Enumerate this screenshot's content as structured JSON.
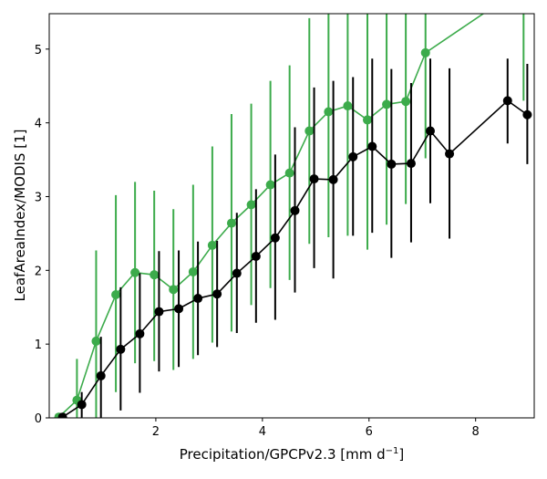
{
  "chart_data": {
    "type": "line",
    "title": "",
    "xlabel": "Precipitation/GPCPv2.3 [mm d",
    "xlabel_sup": "−1",
    "xlabel_end": "]",
    "ylabel": "LeafAreaIndex/MODIS [1]",
    "xlim": [
      0.0,
      9.1
    ],
    "ylim": [
      0.0,
      5.48
    ],
    "x_ticks": [
      2,
      4,
      6,
      8
    ],
    "y_ticks": [
      0,
      1,
      2,
      3,
      4,
      5
    ],
    "grid": false,
    "legend": "none",
    "series": [
      {
        "color": "#3cab4b",
        "points": [
          {
            "x": 0.18,
            "y": 0.01,
            "lo": 0.0,
            "hi": 0.02
          },
          {
            "x": 0.52,
            "y": 0.24,
            "lo": 0.0,
            "hi": 0.8
          },
          {
            "x": 0.88,
            "y": 1.04,
            "lo": 0.0,
            "hi": 2.27
          },
          {
            "x": 1.25,
            "y": 1.67,
            "lo": 0.35,
            "hi": 3.02
          },
          {
            "x": 1.61,
            "y": 1.97,
            "lo": 0.74,
            "hi": 3.2
          },
          {
            "x": 1.97,
            "y": 1.94,
            "lo": 0.77,
            "hi": 3.08
          },
          {
            "x": 2.33,
            "y": 1.74,
            "lo": 0.65,
            "hi": 2.83
          },
          {
            "x": 2.7,
            "y": 1.98,
            "lo": 0.8,
            "hi": 3.16
          },
          {
            "x": 3.06,
            "y": 2.34,
            "lo": 1.02,
            "hi": 3.68
          },
          {
            "x": 3.42,
            "y": 2.64,
            "lo": 1.17,
            "hi": 4.12
          },
          {
            "x": 3.79,
            "y": 2.89,
            "lo": 1.53,
            "hi": 4.26
          },
          {
            "x": 4.15,
            "y": 3.16,
            "lo": 1.76,
            "hi": 4.57
          },
          {
            "x": 4.51,
            "y": 3.32,
            "lo": 1.87,
            "hi": 4.78
          },
          {
            "x": 4.88,
            "y": 3.89,
            "lo": 2.36,
            "hi": 5.42
          },
          {
            "x": 5.24,
            "y": 4.15,
            "lo": 2.45,
            "hi": 5.48
          },
          {
            "x": 5.6,
            "y": 4.23,
            "lo": 2.47,
            "hi": 5.48
          },
          {
            "x": 5.97,
            "y": 4.04,
            "lo": 2.28,
            "hi": 5.48
          },
          {
            "x": 6.33,
            "y": 4.25,
            "lo": 2.62,
            "hi": 5.48
          },
          {
            "x": 6.69,
            "y": 4.29,
            "lo": 2.9,
            "hi": 5.48
          },
          {
            "x": 7.06,
            "y": 4.95,
            "lo": 3.52,
            "hi": 5.48
          },
          {
            "x": 8.9,
            "y": 5.85,
            "lo": 4.3,
            "hi": 5.48
          }
        ]
      },
      {
        "color": "#000000",
        "points": [
          {
            "x": 0.25,
            "y": 0.01,
            "lo": 0.0,
            "hi": 0.03
          },
          {
            "x": 0.61,
            "y": 0.18,
            "lo": 0.0,
            "hi": 0.35
          },
          {
            "x": 0.97,
            "y": 0.57,
            "lo": 0.0,
            "hi": 1.1
          },
          {
            "x": 1.34,
            "y": 0.93,
            "lo": 0.1,
            "hi": 1.77
          },
          {
            "x": 1.7,
            "y": 1.14,
            "lo": 0.34,
            "hi": 1.96
          },
          {
            "x": 2.06,
            "y": 1.44,
            "lo": 0.63,
            "hi": 2.26
          },
          {
            "x": 2.43,
            "y": 1.48,
            "lo": 0.69,
            "hi": 2.27
          },
          {
            "x": 2.79,
            "y": 1.62,
            "lo": 0.85,
            "hi": 2.39
          },
          {
            "x": 3.15,
            "y": 1.68,
            "lo": 0.96,
            "hi": 2.4
          },
          {
            "x": 3.52,
            "y": 1.96,
            "lo": 1.15,
            "hi": 2.78
          },
          {
            "x": 3.88,
            "y": 2.19,
            "lo": 1.29,
            "hi": 3.1
          },
          {
            "x": 4.24,
            "y": 2.44,
            "lo": 1.33,
            "hi": 3.57
          },
          {
            "x": 4.61,
            "y": 2.81,
            "lo": 1.7,
            "hi": 3.94
          },
          {
            "x": 4.97,
            "y": 3.24,
            "lo": 2.03,
            "hi": 4.48
          },
          {
            "x": 5.33,
            "y": 3.23,
            "lo": 1.89,
            "hi": 4.57
          },
          {
            "x": 5.7,
            "y": 3.54,
            "lo": 2.47,
            "hi": 4.62
          },
          {
            "x": 6.06,
            "y": 3.68,
            "lo": 2.51,
            "hi": 4.87
          },
          {
            "x": 6.42,
            "y": 3.44,
            "lo": 2.17,
            "hi": 4.73
          },
          {
            "x": 6.79,
            "y": 3.45,
            "lo": 2.38,
            "hi": 4.54
          },
          {
            "x": 7.15,
            "y": 3.89,
            "lo": 2.91,
            "hi": 4.87
          },
          {
            "x": 7.51,
            "y": 3.58,
            "lo": 2.43,
            "hi": 4.74
          },
          {
            "x": 8.6,
            "y": 4.3,
            "lo": 3.72,
            "hi": 4.87
          },
          {
            "x": 8.97,
            "y": 4.11,
            "lo": 3.44,
            "hi": 4.8
          }
        ]
      }
    ]
  }
}
